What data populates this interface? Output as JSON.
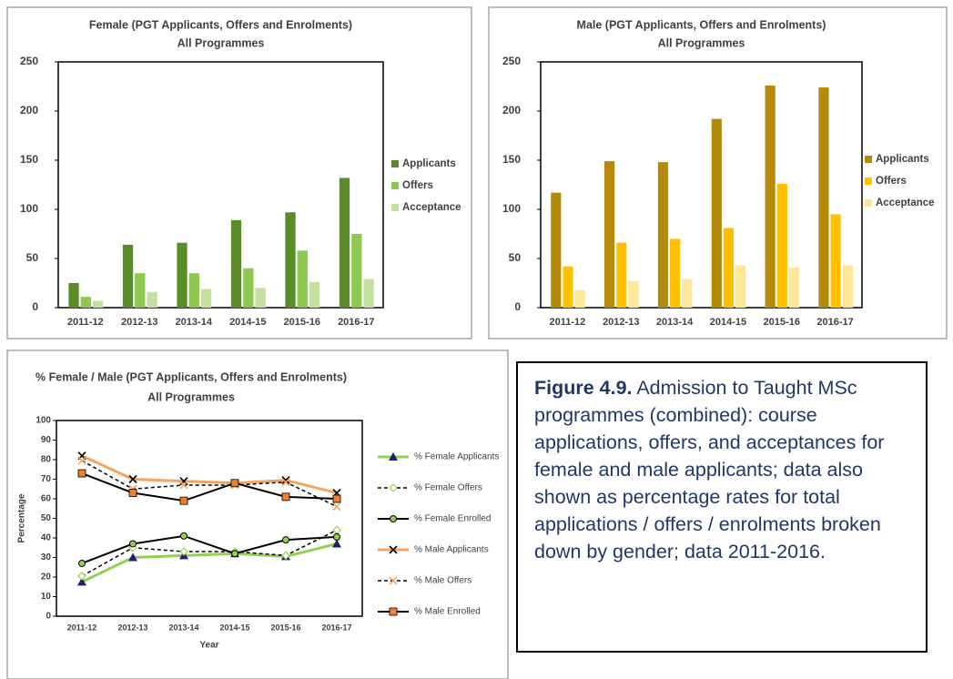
{
  "chart_data": [
    {
      "type": "bar",
      "title": "Female (PGT Applicants, Offers and Enrolments)",
      "subtitle": "All Programmes",
      "categories": [
        "2011-12",
        "2012-13",
        "2013-14",
        "2014-15",
        "2015-16",
        "2016-17"
      ],
      "series": [
        {
          "name": "Applicants",
          "color": "#5b8c2a",
          "values": [
            25,
            64,
            66,
            89,
            97,
            132
          ]
        },
        {
          "name": "Offers",
          "color": "#8dc94e",
          "values": [
            11,
            35,
            35,
            40,
            58,
            75
          ]
        },
        {
          "name": "Acceptance",
          "color": "#c4e0a0",
          "values": [
            7,
            16,
            19,
            20,
            26,
            29
          ]
        }
      ],
      "ylim": [
        0,
        250
      ],
      "yticks": [
        0,
        50,
        100,
        150,
        200,
        250
      ],
      "grid": false,
      "legend": "right"
    },
    {
      "type": "bar",
      "title": "Male (PGT Applicants, Offers and Enrolments)",
      "subtitle": "All Programmes",
      "categories": [
        "2011-12",
        "2012-13",
        "2013-14",
        "2014-15",
        "2015-16",
        "2016-17"
      ],
      "series": [
        {
          "name": "Applicants",
          "color": "#b58a08",
          "values": [
            117,
            149,
            148,
            192,
            226,
            224
          ]
        },
        {
          "name": "Offers",
          "color": "#ffc000",
          "values": [
            42,
            66,
            70,
            81,
            126,
            95
          ]
        },
        {
          "name": "Acceptance",
          "color": "#ffe699",
          "values": [
            18,
            27,
            29,
            43,
            41,
            43
          ]
        }
      ],
      "ylim": [
        0,
        250
      ],
      "yticks": [
        0,
        50,
        100,
        150,
        200,
        250
      ],
      "grid": false,
      "legend": "right"
    },
    {
      "type": "line",
      "title": "% Female / Male  (PGT Applicants, Offers and Enrolments)",
      "subtitle": "All Programmes",
      "x_label": "Year",
      "y_label": "Percentage",
      "categories": [
        "2011-12",
        "2012-13",
        "2013-14",
        "2014-15",
        "2015-16",
        "2016-17"
      ],
      "series": [
        {
          "name": "% Female Applicants",
          "color": "#92d050",
          "marker_color": "#1f1f7a",
          "marker": "triangle",
          "dashed": false,
          "width": 3,
          "values": [
            17.5,
            30,
            31,
            32,
            30.5,
            37
          ]
        },
        {
          "name": "% Female Offers",
          "color": "#000000",
          "marker_color": "#92d050",
          "marker": "diamond",
          "dashed": true,
          "width": 1.5,
          "values": [
            20.5,
            35,
            33,
            33,
            31,
            44
          ]
        },
        {
          "name": "% Female Enrolled",
          "color": "#000000",
          "marker_color": "#92d050",
          "marker": "circle",
          "dashed": false,
          "width": 2,
          "values": [
            27,
            37,
            41,
            32,
            39,
            40.5
          ]
        },
        {
          "name": "% Male Applicants",
          "color": "#f4a460",
          "marker_color": "#000000",
          "marker": "x",
          "dashed": false,
          "width": 3,
          "values": [
            82,
            70,
            69,
            68,
            69.5,
            63
          ]
        },
        {
          "name": "% Male Offers",
          "color": "#000000",
          "marker_color": "#f4a460",
          "marker": "x",
          "dashed": true,
          "width": 1.5,
          "values": [
            79.5,
            65,
            67,
            67,
            68.5,
            56
          ]
        },
        {
          "name": "% Male Enrolled",
          "color": "#000000",
          "marker_color": "#f08030",
          "marker": "square",
          "dashed": false,
          "width": 2,
          "values": [
            73,
            63,
            59,
            68,
            61,
            60
          ]
        }
      ],
      "ylim": [
        0,
        100
      ],
      "yticks": [
        0,
        10,
        20,
        30,
        40,
        50,
        60,
        70,
        80,
        90,
        100
      ],
      "grid": false,
      "legend": "right"
    }
  ],
  "caption": {
    "label": "Figure 4.9.",
    "text": "Admission to Taught MSc programmes (combined): course applications, offers, and acceptances for female and male applicants; data also shown as percentage rates for total applications / offers / enrolments broken down by gender; data 2011-2016."
  }
}
